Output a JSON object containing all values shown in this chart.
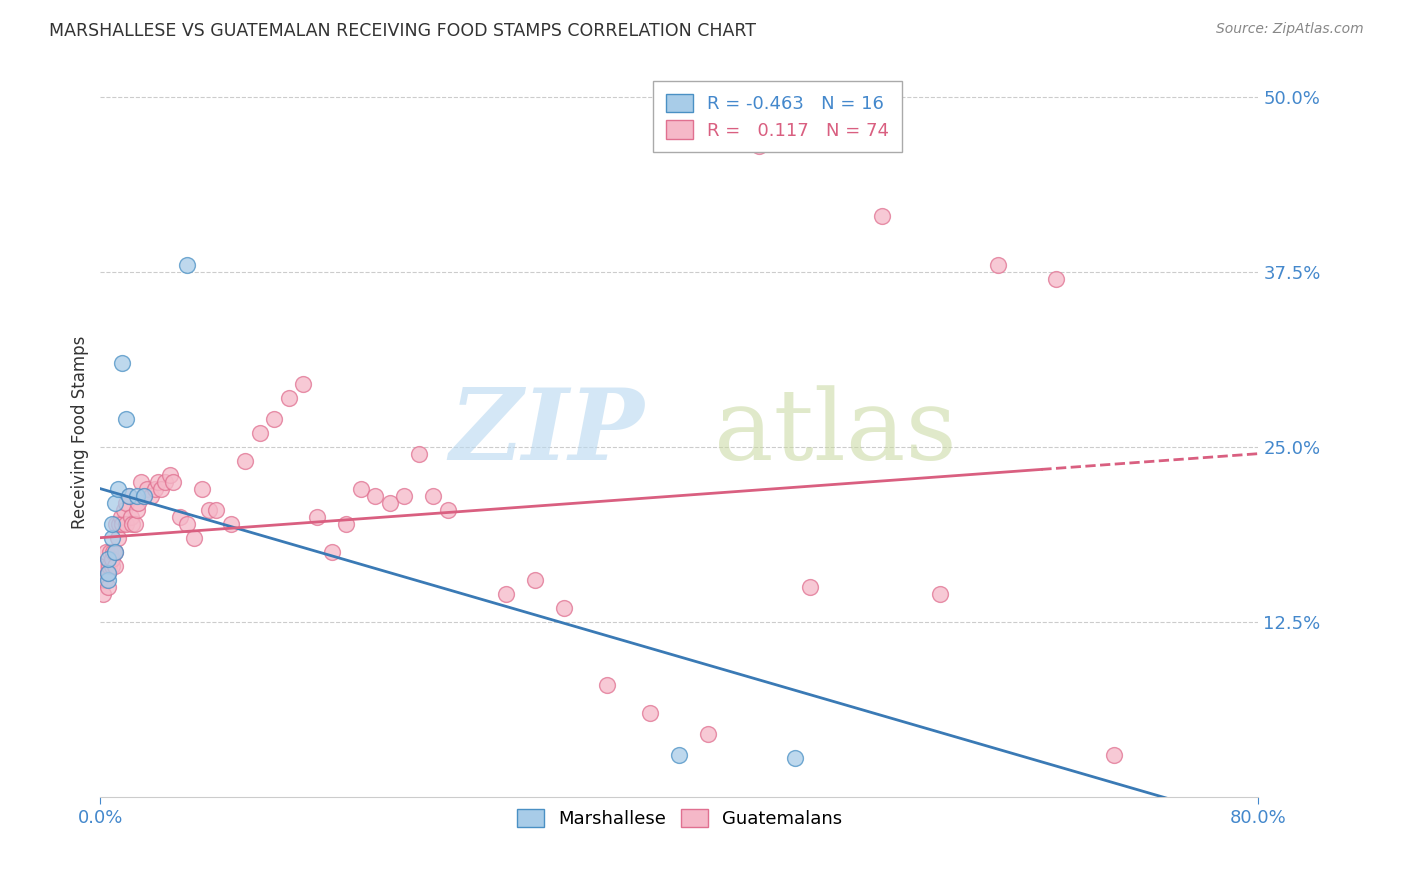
{
  "title": "MARSHALLESE VS GUATEMALAN RECEIVING FOOD STAMPS CORRELATION CHART",
  "source": "Source: ZipAtlas.com",
  "ylabel": "Receiving Food Stamps",
  "xlim": [
    0.0,
    0.8
  ],
  "ylim": [
    0.0,
    0.52
  ],
  "legend_r_blue": "-0.463",
  "legend_n_blue": "16",
  "legend_r_pink": "0.117",
  "legend_n_pink": "74",
  "blue_color": "#a8cce8",
  "pink_color": "#f5b8c8",
  "blue_edge_color": "#4a90c4",
  "pink_edge_color": "#e07090",
  "blue_line_color": "#3a7ab5",
  "pink_line_color": "#d95f80",
  "marshallese_x": [
    0.005,
    0.005,
    0.005,
    0.008,
    0.008,
    0.01,
    0.01,
    0.012,
    0.015,
    0.018,
    0.02,
    0.025,
    0.03,
    0.06,
    0.4,
    0.48
  ],
  "marshallese_y": [
    0.155,
    0.16,
    0.17,
    0.185,
    0.195,
    0.175,
    0.21,
    0.22,
    0.31,
    0.27,
    0.215,
    0.215,
    0.215,
    0.38,
    0.03,
    0.028
  ],
  "guatemalan_x": [
    0.0,
    0.001,
    0.002,
    0.003,
    0.003,
    0.004,
    0.005,
    0.005,
    0.006,
    0.007,
    0.008,
    0.008,
    0.009,
    0.01,
    0.01,
    0.011,
    0.012,
    0.013,
    0.014,
    0.015,
    0.016,
    0.018,
    0.018,
    0.02,
    0.021,
    0.022,
    0.024,
    0.025,
    0.026,
    0.028,
    0.03,
    0.032,
    0.035,
    0.038,
    0.04,
    0.042,
    0.045,
    0.048,
    0.05,
    0.055,
    0.06,
    0.065,
    0.07,
    0.075,
    0.08,
    0.09,
    0.1,
    0.11,
    0.12,
    0.13,
    0.14,
    0.15,
    0.16,
    0.17,
    0.18,
    0.19,
    0.2,
    0.21,
    0.22,
    0.23,
    0.24,
    0.28,
    0.3,
    0.32,
    0.35,
    0.38,
    0.42,
    0.455,
    0.49,
    0.54,
    0.58,
    0.62,
    0.66,
    0.7
  ],
  "guatemalan_y": [
    0.155,
    0.165,
    0.145,
    0.155,
    0.165,
    0.175,
    0.15,
    0.16,
    0.165,
    0.175,
    0.165,
    0.17,
    0.175,
    0.165,
    0.175,
    0.195,
    0.185,
    0.195,
    0.2,
    0.195,
    0.205,
    0.195,
    0.21,
    0.215,
    0.2,
    0.195,
    0.195,
    0.205,
    0.21,
    0.225,
    0.215,
    0.22,
    0.215,
    0.22,
    0.225,
    0.22,
    0.225,
    0.23,
    0.225,
    0.2,
    0.195,
    0.185,
    0.22,
    0.205,
    0.205,
    0.195,
    0.24,
    0.26,
    0.27,
    0.285,
    0.295,
    0.2,
    0.175,
    0.195,
    0.22,
    0.215,
    0.21,
    0.215,
    0.245,
    0.215,
    0.205,
    0.145,
    0.155,
    0.135,
    0.08,
    0.06,
    0.045,
    0.465,
    0.15,
    0.415,
    0.145,
    0.38,
    0.37,
    0.03
  ]
}
